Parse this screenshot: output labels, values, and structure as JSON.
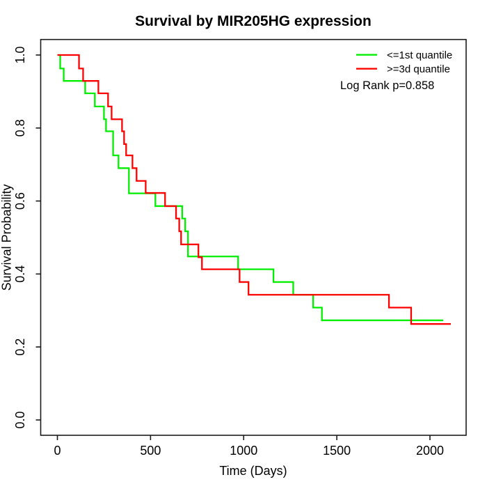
{
  "chart_data": {
    "type": "line",
    "subtype": "kaplan-meier-step-curves",
    "title": "Survival by MIR205HG expression",
    "xlabel": "Time (Days)",
    "ylabel": "Survival Probability",
    "x_ticks": [
      "0",
      "500",
      "1000",
      "1500",
      "2000"
    ],
    "x_tick_values": [
      0,
      500,
      1000,
      1500,
      2000
    ],
    "y_ticks": [
      "0.0",
      "0.2",
      "0.4",
      "0.6",
      "0.8",
      "1.0"
    ],
    "y_tick_values": [
      0.0,
      0.2,
      0.4,
      0.6,
      0.8,
      1.0
    ],
    "xlim": [
      -90,
      2194
    ],
    "ylim": [
      -0.042,
      1.0425
    ],
    "grid": false,
    "legend_position": "top-right",
    "annotation": "Log Rank p=0.858",
    "axis_color": "#1a1a1a",
    "series": [
      {
        "name": "<=1st quantile",
        "color": "#00ee00",
        "start": [
          0,
          1.0
        ],
        "steps": [
          [
            15,
            0.963
          ],
          [
            34,
            0.929
          ],
          [
            149,
            0.895
          ],
          [
            201,
            0.859
          ],
          [
            250,
            0.824
          ],
          [
            261,
            0.791
          ],
          [
            299,
            0.725
          ],
          [
            328,
            0.69
          ],
          [
            384,
            0.621
          ],
          [
            526,
            0.586
          ],
          [
            670,
            0.552
          ],
          [
            686,
            0.517
          ],
          [
            701,
            0.448
          ],
          [
            970,
            0.413
          ],
          [
            1160,
            0.378
          ],
          [
            1266,
            0.343
          ],
          [
            1373,
            0.308
          ],
          [
            1420,
            0.273
          ]
        ],
        "end_time": 2071
      },
      {
        "name": ">=3d quantile",
        "color": "#ff0000",
        "start": [
          0,
          1.0
        ],
        "steps": [
          [
            116,
            0.963
          ],
          [
            138,
            0.929
          ],
          [
            220,
            0.895
          ],
          [
            272,
            0.859
          ],
          [
            291,
            0.824
          ],
          [
            347,
            0.791
          ],
          [
            358,
            0.756
          ],
          [
            369,
            0.725
          ],
          [
            403,
            0.69
          ],
          [
            425,
            0.655
          ],
          [
            474,
            0.622
          ],
          [
            578,
            0.586
          ],
          [
            637,
            0.552
          ],
          [
            654,
            0.517
          ],
          [
            664,
            0.481
          ],
          [
            757,
            0.446
          ],
          [
            776,
            0.413
          ],
          [
            978,
            0.378
          ],
          [
            1026,
            0.343
          ],
          [
            1780,
            0.308
          ],
          [
            1899,
            0.263
          ]
        ],
        "end_time": 2112
      }
    ]
  }
}
